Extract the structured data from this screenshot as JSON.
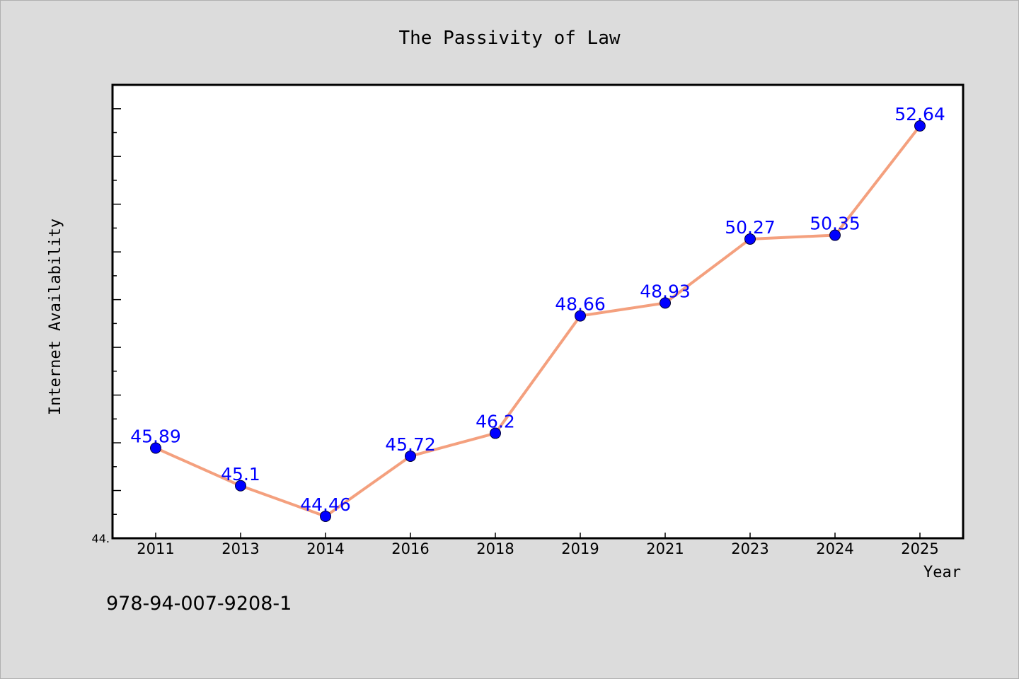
{
  "footer": {
    "code": "978-94-007-9208-1"
  },
  "colors": {
    "background": "#dcdcdc",
    "plot_background": "#ffffff",
    "line": "#f4a07e",
    "marker": "#0000ff",
    "data_label": "#0000ff"
  },
  "chart_data": {
    "type": "line",
    "title": "The Passivity of Law",
    "xlabel": "Year",
    "ylabel": "Internet Availability",
    "categories": [
      "2011",
      "2013",
      "2014",
      "2016",
      "2018",
      "2019",
      "2021",
      "2023",
      "2024",
      "2025"
    ],
    "series": [
      {
        "values": [
          45.89,
          45.1,
          44.46,
          45.72,
          46.2,
          48.66,
          48.93,
          50.27,
          50.35,
          52.64
        ],
        "labels": [
          "45.89",
          "45.1",
          "44.46",
          "45.72",
          "46.2",
          "48.66",
          "48.93",
          "50.27",
          "50.35",
          "52.64"
        ]
      }
    ],
    "ylim": [
      44.0,
      53.5
    ],
    "y_tick_labels": [
      "44."
    ],
    "grid": false,
    "legend": "none"
  }
}
